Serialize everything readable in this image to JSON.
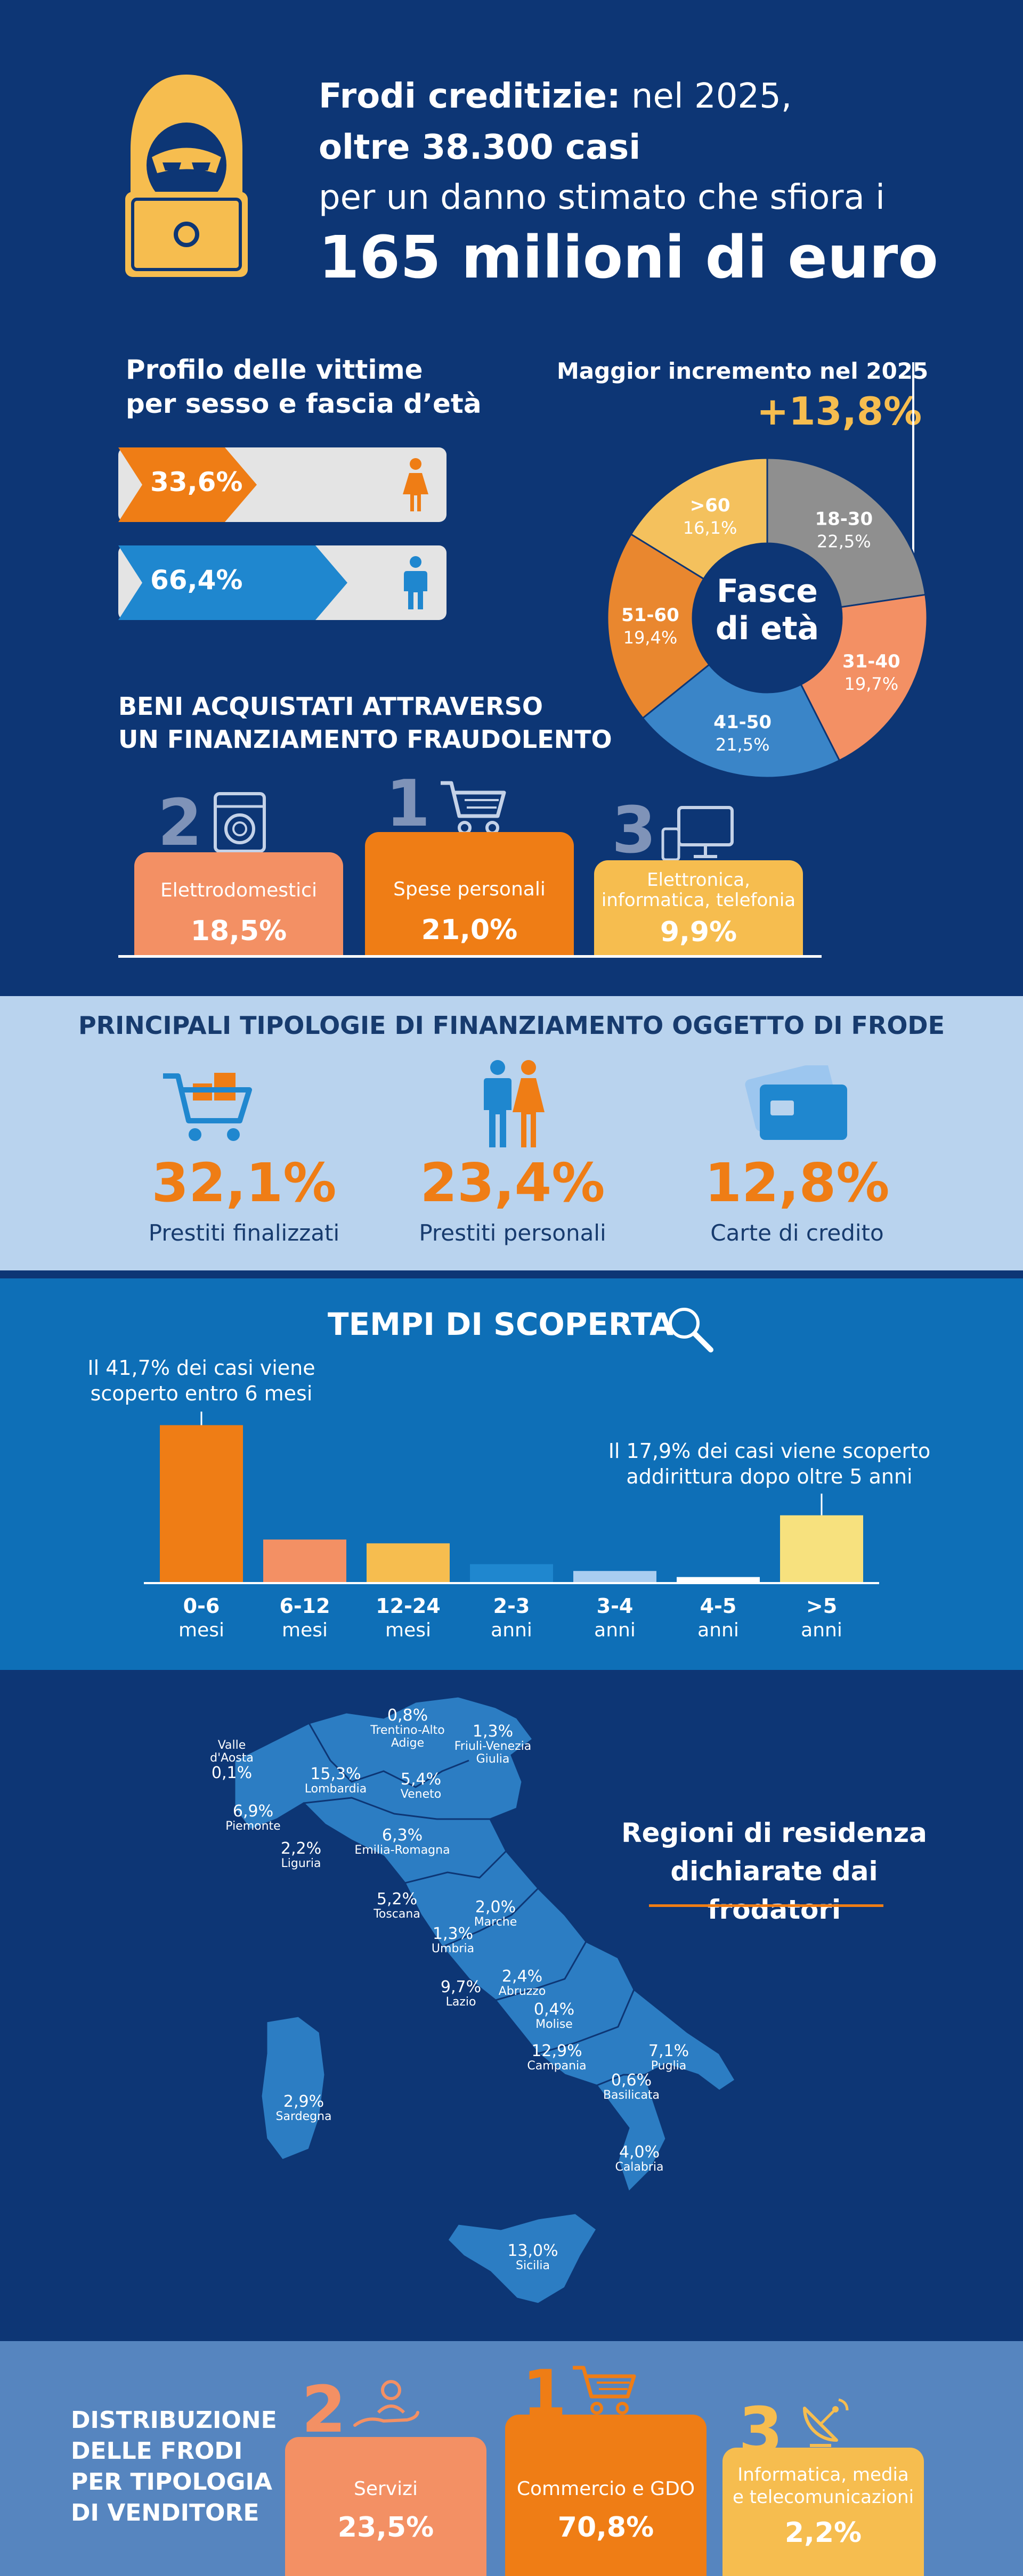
{
  "header": {
    "line1_bold": "Frodi creditizie:",
    "line1_rest": " nel 2025,",
    "line2": "oltre 38.300 casi",
    "line3": "per un danno stimato che sfiora i",
    "line4": "165 milioni di euro"
  },
  "victims": {
    "title_line1": "Profilo delle vittime",
    "title_line2": "per sesso e fascia d’età",
    "female_value": "33,6%",
    "male_value": "66,4%"
  },
  "age": {
    "increase_label": "Maggior incremento nel 2025",
    "increase_value": "+13,8%",
    "center_line1": "Fasce",
    "center_line2": "di età"
  },
  "goods": {
    "title_line1": "BENI ACQUISTATI ATTRAVERSO",
    "title_line2": "UN FINANZIAMENTO FRAUDOLENTO",
    "items": [
      {
        "rank": "2",
        "name": "Elettrodomestici",
        "value": "18,5%"
      },
      {
        "rank": "1",
        "name": "Spese personali",
        "value": "21,0%"
      },
      {
        "rank": "3",
        "name_line1": "Elettronica,",
        "name_line2": "informatica, telefonia",
        "value": "9,9%"
      }
    ]
  },
  "financing": {
    "title": "PRINCIPALI TIPOLOGIE DI FINANZIAMENTO OGGETTO DI FRODE",
    "items": [
      {
        "value": "32,1%",
        "label": "Prestiti finalizzati"
      },
      {
        "value": "23,4%",
        "label": "Prestiti personali"
      },
      {
        "value": "12,8%",
        "label": "Carte di credito"
      }
    ]
  },
  "discovery": {
    "title": "TEMPI DI SCOPERTA",
    "note_left_line1": "Il 41,7% dei casi viene",
    "note_left_line2": "scoperto entro 6 mesi",
    "note_right_line1": "Il 17,9% dei casi viene scoperto",
    "note_right_line2": "addirittura dopo oltre 5 anni"
  },
  "regions": {
    "title_line1": "Regioni di residenza",
    "title_line2": "dichiarate dai frodatori",
    "items": [
      {
        "name": "Valle d'Aosta",
        "value": "0,1%"
      },
      {
        "name": "Trentino-Alto Adige",
        "value": "0,8%"
      },
      {
        "name": "Friuli-Venezia Giulia",
        "value": "1,3%"
      },
      {
        "name": "Lombardia",
        "value": "15,3%"
      },
      {
        "name": "Veneto",
        "value": "5,4%"
      },
      {
        "name": "Piemonte",
        "value": "6,9%"
      },
      {
        "name": "Liguria",
        "value": "2,2%"
      },
      {
        "name": "Emilia-Romagna",
        "value": "6,3%"
      },
      {
        "name": "Toscana",
        "value": "5,2%"
      },
      {
        "name": "Marche",
        "value": "2,0%"
      },
      {
        "name": "Umbria",
        "value": "1,3%"
      },
      {
        "name": "Abruzzo",
        "value": "2,4%"
      },
      {
        "name": "Lazio",
        "value": "9,7%"
      },
      {
        "name": "Molise",
        "value": "0,4%"
      },
      {
        "name": "Campania",
        "value": "12,9%"
      },
      {
        "name": "Puglia",
        "value": "7,1%"
      },
      {
        "name": "Basilicata",
        "value": "0,6%"
      },
      {
        "name": "Sardegna",
        "value": "2,9%"
      },
      {
        "name": "Calabria",
        "value": "4,0%"
      },
      {
        "name": "Sicilia",
        "value": "13,0%"
      }
    ]
  },
  "vendors": {
    "title_line1": "DISTRIBUZIONE",
    "title_line2": "DELLE FRODI",
    "title_line3": "PER TIPOLOGIA",
    "title_line4": "DI VENDITORE",
    "items": [
      {
        "rank": "2",
        "name": "Servizi",
        "value": "23,5%"
      },
      {
        "rank": "1",
        "name": "Commercio e GDO",
        "value": "70,8%"
      },
      {
        "rank": "3",
        "name_line1": "Informatica, media",
        "name_line2": "e telecomunicazioni",
        "value": "2,2%"
      }
    ]
  },
  "colors": {
    "navy": "#0d3675",
    "orange": "#ef7d15",
    "salmon": "#f39064",
    "yellow": "#f6bd4f",
    "blue": "#1f87cf",
    "light_blue_bg": "#b9d3ee",
    "mid_blue_bg": "#0e6fb7"
  },
  "chart_data": [
    {
      "type": "pie",
      "categories": [
        "18-30",
        "31-40",
        "41-50",
        "51-60",
        ">60"
      ],
      "values": [
        22.5,
        19.7,
        21.5,
        19.4,
        16.1
      ],
      "labels": [
        "22,5%",
        "19,7%",
        "21,5%",
        "19,4%",
        "16,1%"
      ],
      "colors": [
        "#8f8f8f",
        "#f39064",
        "#3a85c8",
        "#e9872f",
        "#f4c15d"
      ]
    },
    {
      "type": "bar",
      "categories": [
        {
          "line1": "0-6",
          "line2": "mesi"
        },
        {
          "line1": "6-12",
          "line2": "mesi"
        },
        {
          "line1": "12-24",
          "line2": "mesi"
        },
        {
          "line1": "2-3",
          "line2": "anni"
        },
        {
          "line1": "3-4",
          "line2": "anni"
        },
        {
          "line1": "4-5",
          "line2": "anni"
        },
        {
          "line1": ">5",
          "line2": "anni"
        }
      ],
      "values": [
        41.7,
        11.5,
        10.5,
        5.0,
        3.2,
        1.6,
        17.9
      ],
      "colors": [
        "#ef7d15",
        "#f39064",
        "#f6bd4f",
        "#1f87cf",
        "#a9cdf0",
        "#ffffff",
        "#f7e17e"
      ],
      "ylim": [
        0,
        45
      ]
    }
  ]
}
